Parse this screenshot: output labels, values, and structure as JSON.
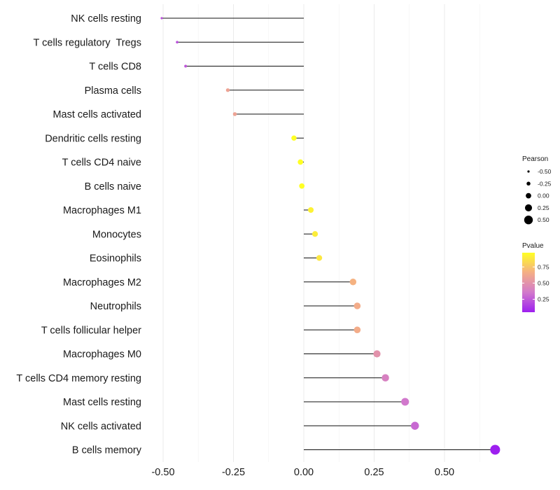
{
  "chart_data": {
    "type": "lollipop",
    "title": "",
    "xlabel": "",
    "ylabel": "",
    "xlim": [
      -0.55,
      0.75
    ],
    "xticks": [
      -0.5,
      -0.25,
      0.0,
      0.25,
      0.5
    ],
    "xtick_labels": [
      "-0.50",
      "-0.25",
      "0.00",
      "0.25",
      "0.50"
    ],
    "grid": true,
    "categories": [
      "NK cells resting",
      "T cells regulatory  Tregs",
      "T cells CD8",
      "Plasma cells",
      "Mast cells activated",
      "Dendritic cells resting",
      "T cells CD4 naive",
      "B cells naive",
      "Macrophages M1",
      "Monocytes",
      "Eosinophils",
      "Macrophages M2",
      "Neutrophils",
      "T cells follicular helper",
      "Macrophages M0",
      "T cells CD4 memory resting",
      "Mast cells resting",
      "NK cells activated",
      "B cells memory"
    ],
    "pearson": [
      -0.505,
      -0.45,
      -0.42,
      -0.27,
      -0.245,
      -0.035,
      -0.012,
      -0.007,
      0.025,
      0.04,
      0.055,
      0.175,
      0.19,
      0.19,
      0.26,
      0.29,
      0.36,
      0.395,
      0.68
    ],
    "pvalue": [
      0.22,
      0.22,
      0.24,
      0.6,
      0.6,
      0.97,
      0.97,
      0.97,
      0.92,
      0.9,
      0.88,
      0.68,
      0.65,
      0.65,
      0.5,
      0.4,
      0.35,
      0.3,
      0.05
    ],
    "legend": {
      "size": {
        "title": "Pearson",
        "labels": [
          "-0.50",
          "-0.25",
          "0.00",
          "0.25",
          "0.50"
        ],
        "values": [
          -0.5,
          -0.25,
          0.0,
          0.25,
          0.5
        ]
      },
      "color": {
        "title": "Pvalue",
        "labels": [
          "0.75",
          "0.50",
          "0.25"
        ],
        "values": [
          0.75,
          0.5,
          0.25
        ],
        "range": [
          0.05,
          0.97
        ],
        "stops": [
          "#9D1FEF",
          "#D27ACB",
          "#F4AE86",
          "#FFFF24"
        ]
      }
    }
  }
}
